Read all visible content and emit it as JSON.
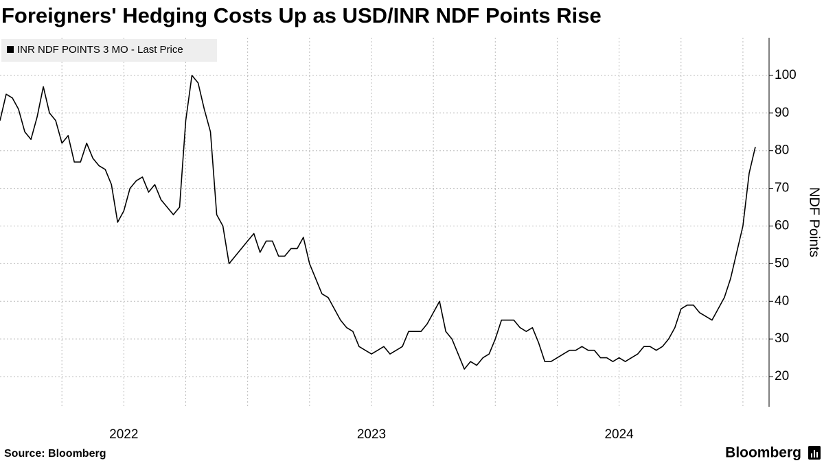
{
  "chart_data": {
    "type": "line",
    "title": "Foreigners' Hedging Costs Up as USD/INR NDF Points Rise",
    "ylabel": "NDF Points",
    "source": "Source: Bloomberg",
    "brand": "Bloomberg",
    "x": [
      2021.5,
      2021.525,
      2021.55,
      2021.575,
      2021.6,
      2021.625,
      2021.65,
      2021.675,
      2021.7,
      2021.725,
      2021.75,
      2021.775,
      2021.8,
      2021.825,
      2021.85,
      2021.875,
      2021.9,
      2021.925,
      2021.95,
      2021.975,
      2022,
      2022.025,
      2022.05,
      2022.075,
      2022.1,
      2022.125,
      2022.15,
      2022.175,
      2022.2,
      2022.225,
      2022.25,
      2022.275,
      2022.3,
      2022.325,
      2022.35,
      2022.375,
      2022.4,
      2022.425,
      2022.45,
      2022.475,
      2022.5,
      2022.525,
      2022.55,
      2022.575,
      2022.6,
      2022.625,
      2022.65,
      2022.675,
      2022.7,
      2022.725,
      2022.75,
      2022.775,
      2022.8,
      2022.825,
      2022.85,
      2022.875,
      2022.9,
      2022.925,
      2022.95,
      2022.975,
      2023,
      2023.025,
      2023.05,
      2023.075,
      2023.1,
      2023.125,
      2023.15,
      2023.175,
      2023.2,
      2023.225,
      2023.25,
      2023.275,
      2023.3,
      2023.325,
      2023.35,
      2023.375,
      2023.4,
      2023.425,
      2023.45,
      2023.475,
      2023.5,
      2023.525,
      2023.55,
      2023.575,
      2023.6,
      2023.625,
      2023.65,
      2023.675,
      2023.7,
      2023.725,
      2023.75,
      2023.775,
      2023.8,
      2023.825,
      2023.85,
      2023.875,
      2023.9,
      2023.925,
      2023.95,
      2023.975,
      2024,
      2024.025,
      2024.05,
      2024.075,
      2024.1,
      2024.125,
      2024.15,
      2024.175,
      2024.2,
      2024.225,
      2024.25,
      2024.275,
      2024.3,
      2024.325,
      2024.35,
      2024.375,
      2024.4,
      2024.425,
      2024.45,
      2024.475,
      2024.5,
      2024.525,
      2024.55
    ],
    "series": [
      {
        "name": "INR NDF POINTS 3 MO - Last Price",
        "color": "#000000",
        "values": [
          88,
          95,
          94,
          91,
          85,
          83,
          89,
          97,
          90,
          88,
          82,
          84,
          77,
          77,
          82,
          78,
          76,
          75,
          71,
          61,
          64,
          70,
          72,
          73,
          69,
          71,
          67,
          65,
          63,
          65,
          88,
          100,
          98,
          91,
          85,
          63,
          60,
          50,
          52,
          54,
          56,
          58,
          53,
          56,
          56,
          52,
          52,
          54,
          54,
          57,
          50,
          46,
          42,
          41,
          38,
          35,
          33,
          32,
          28,
          27,
          26,
          27,
          28,
          26,
          27,
          28,
          32,
          32,
          32,
          34,
          37,
          40,
          32,
          30,
          26,
          22,
          24,
          23,
          25,
          26,
          30,
          35,
          35,
          35,
          33,
          32,
          33,
          29,
          24,
          24,
          25,
          26,
          27,
          27,
          28,
          27,
          27,
          25,
          25,
          24,
          25,
          24,
          25,
          26,
          28,
          28,
          27,
          28,
          30,
          33,
          38,
          39,
          39,
          37,
          36,
          35,
          38,
          41,
          46,
          53,
          60,
          74,
          81
        ]
      }
    ],
    "xlim": [
      2021.5,
      2024.6
    ],
    "xticks": [
      2022,
      2023,
      2024
    ],
    "xgrid": [
      2021.75,
      2022,
      2022.25,
      2022.5,
      2022.75,
      2023,
      2023.25,
      2023.5,
      2023.75,
      2024,
      2024.25,
      2024.5
    ],
    "ylim": [
      12,
      110
    ],
    "yticks": [
      20,
      30,
      40,
      50,
      60,
      70,
      80,
      90,
      100
    ],
    "grid": true,
    "legend": "top-left"
  }
}
